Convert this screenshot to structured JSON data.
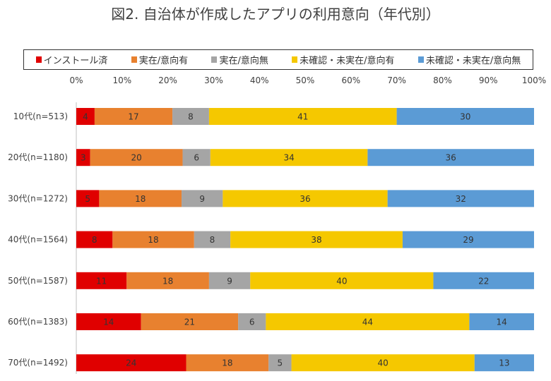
{
  "chart_data": {
    "type": "bar",
    "orientation": "horizontal",
    "stacked": true,
    "title": "図2. 自治体が作成したアプリの利用意向（年代別）",
    "categories": [
      "10代(n=513)",
      "20代(n=1180)",
      "30代(n=1272)",
      "40代(n=1564)",
      "50代(n=1587)",
      "60代(n=1383)",
      "70代(n=1492)"
    ],
    "xlim": [
      0,
      100
    ],
    "xticks": [
      "0%",
      "10%",
      "20%",
      "30%",
      "40%",
      "50%",
      "60%",
      "70%",
      "80%",
      "90%",
      "100%"
    ],
    "legend_position": "top",
    "grid": false,
    "series": [
      {
        "name": "インストール済",
        "color": "#e00000",
        "values": [
          4,
          3,
          5,
          8,
          11,
          14,
          24
        ]
      },
      {
        "name": "実在/意向有",
        "color": "#e8812f",
        "values": [
          17,
          20,
          18,
          18,
          18,
          21,
          18
        ]
      },
      {
        "name": "実在/意向無",
        "color": "#a5a5a5",
        "values": [
          8,
          6,
          9,
          8,
          9,
          6,
          5
        ]
      },
      {
        "name": "未確認・未実在/意向有",
        "color": "#f5c800",
        "values": [
          41,
          34,
          36,
          38,
          40,
          44,
          40
        ]
      },
      {
        "name": "未確認・未実在/意向無",
        "color": "#5b9bd5",
        "values": [
          30,
          36,
          32,
          29,
          22,
          14,
          13
        ]
      }
    ]
  }
}
